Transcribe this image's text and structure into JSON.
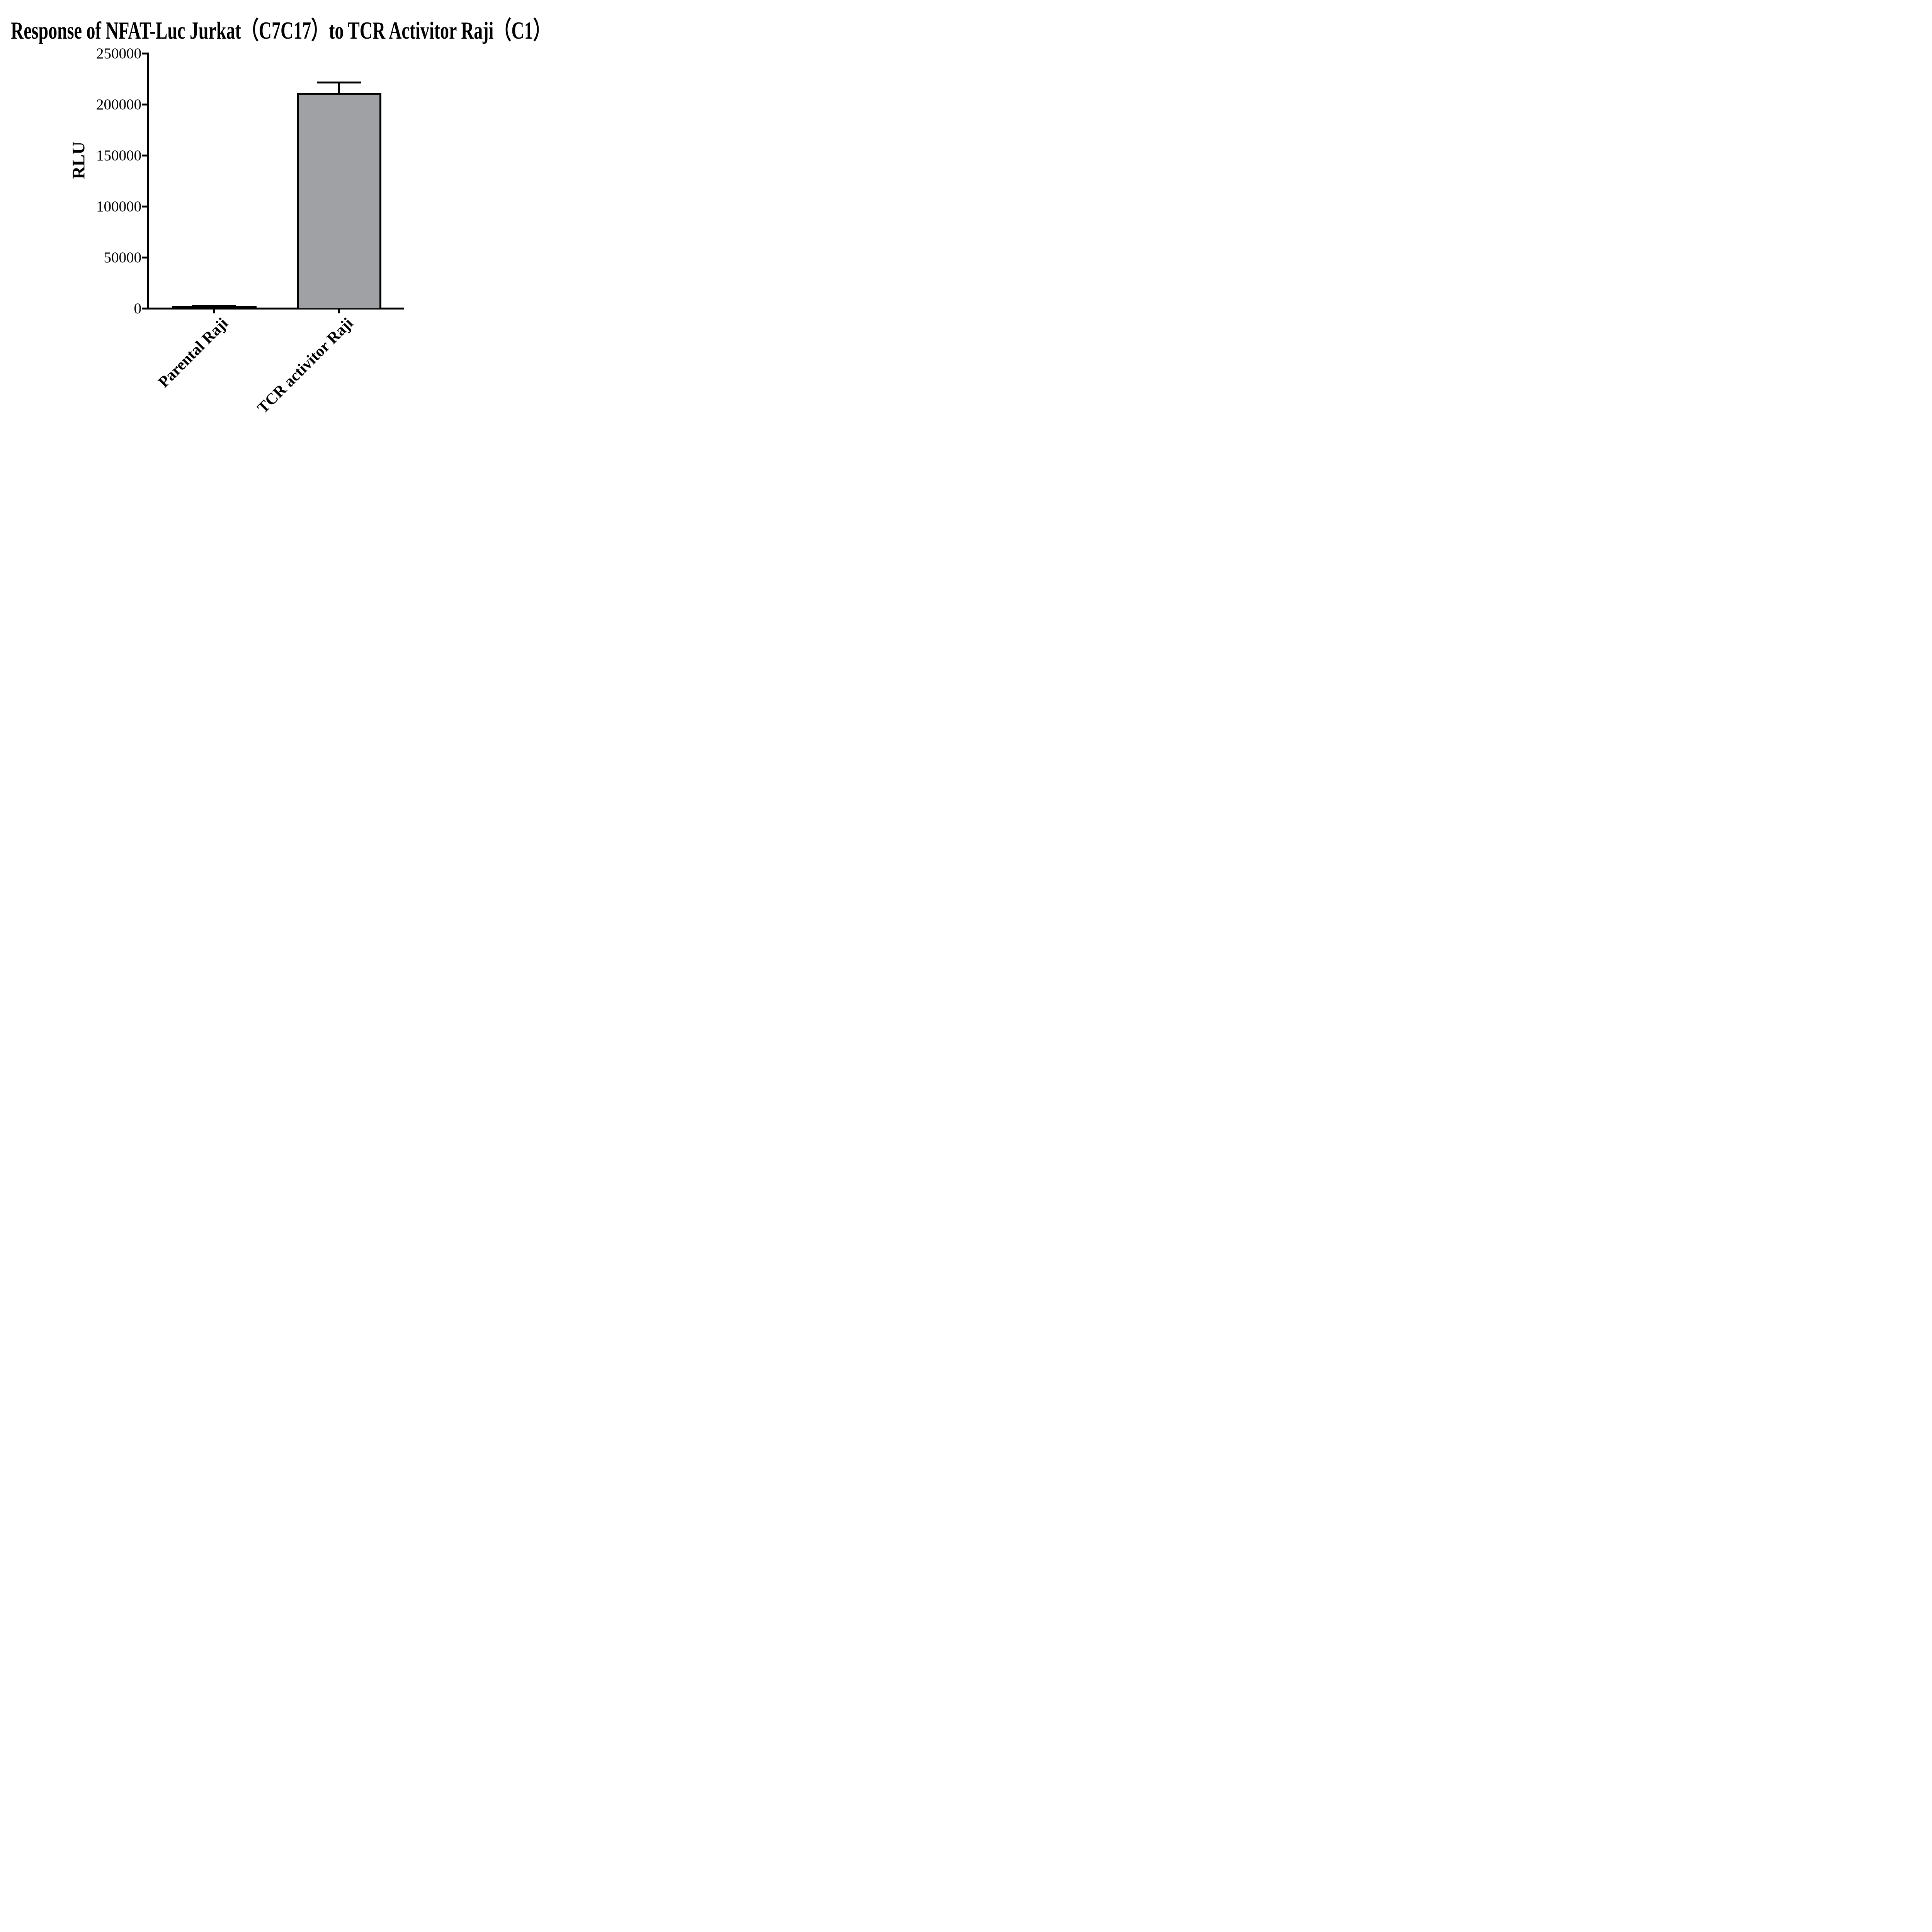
{
  "page": {
    "background": "#ffffff"
  },
  "title": "Response of NFAT-Luc Jurkat（C7C17）to TCR Activitor Raji（C1）",
  "chart_data": {
    "type": "bar",
    "title": "Response of NFAT-Luc Jurkat（C7C17）to TCR Activitor Raji（C1）",
    "xlabel": "",
    "ylabel": "RLU",
    "categories": [
      "Parental Raji",
      "TCR activitor Raji"
    ],
    "series": [
      {
        "name": "RLU",
        "values": [
          1500,
          210500
        ],
        "errors_plus": [
          1000,
          11000
        ]
      }
    ],
    "yticks": [
      0,
      50000,
      100000,
      150000,
      200000,
      250000
    ],
    "ylim": [
      0,
      250000
    ],
    "grid": false,
    "legend": null,
    "layout_hints": {
      "bar_orientation": "vertical",
      "error_bars": "upper only, cap half bar width",
      "x_labels_rotation_deg": 45
    },
    "colors": {
      "bar_fill": "#a0a1a5",
      "bar_border": "#000000",
      "error_bar": "#000000",
      "axis": "#000000",
      "text": "#000000"
    }
  }
}
